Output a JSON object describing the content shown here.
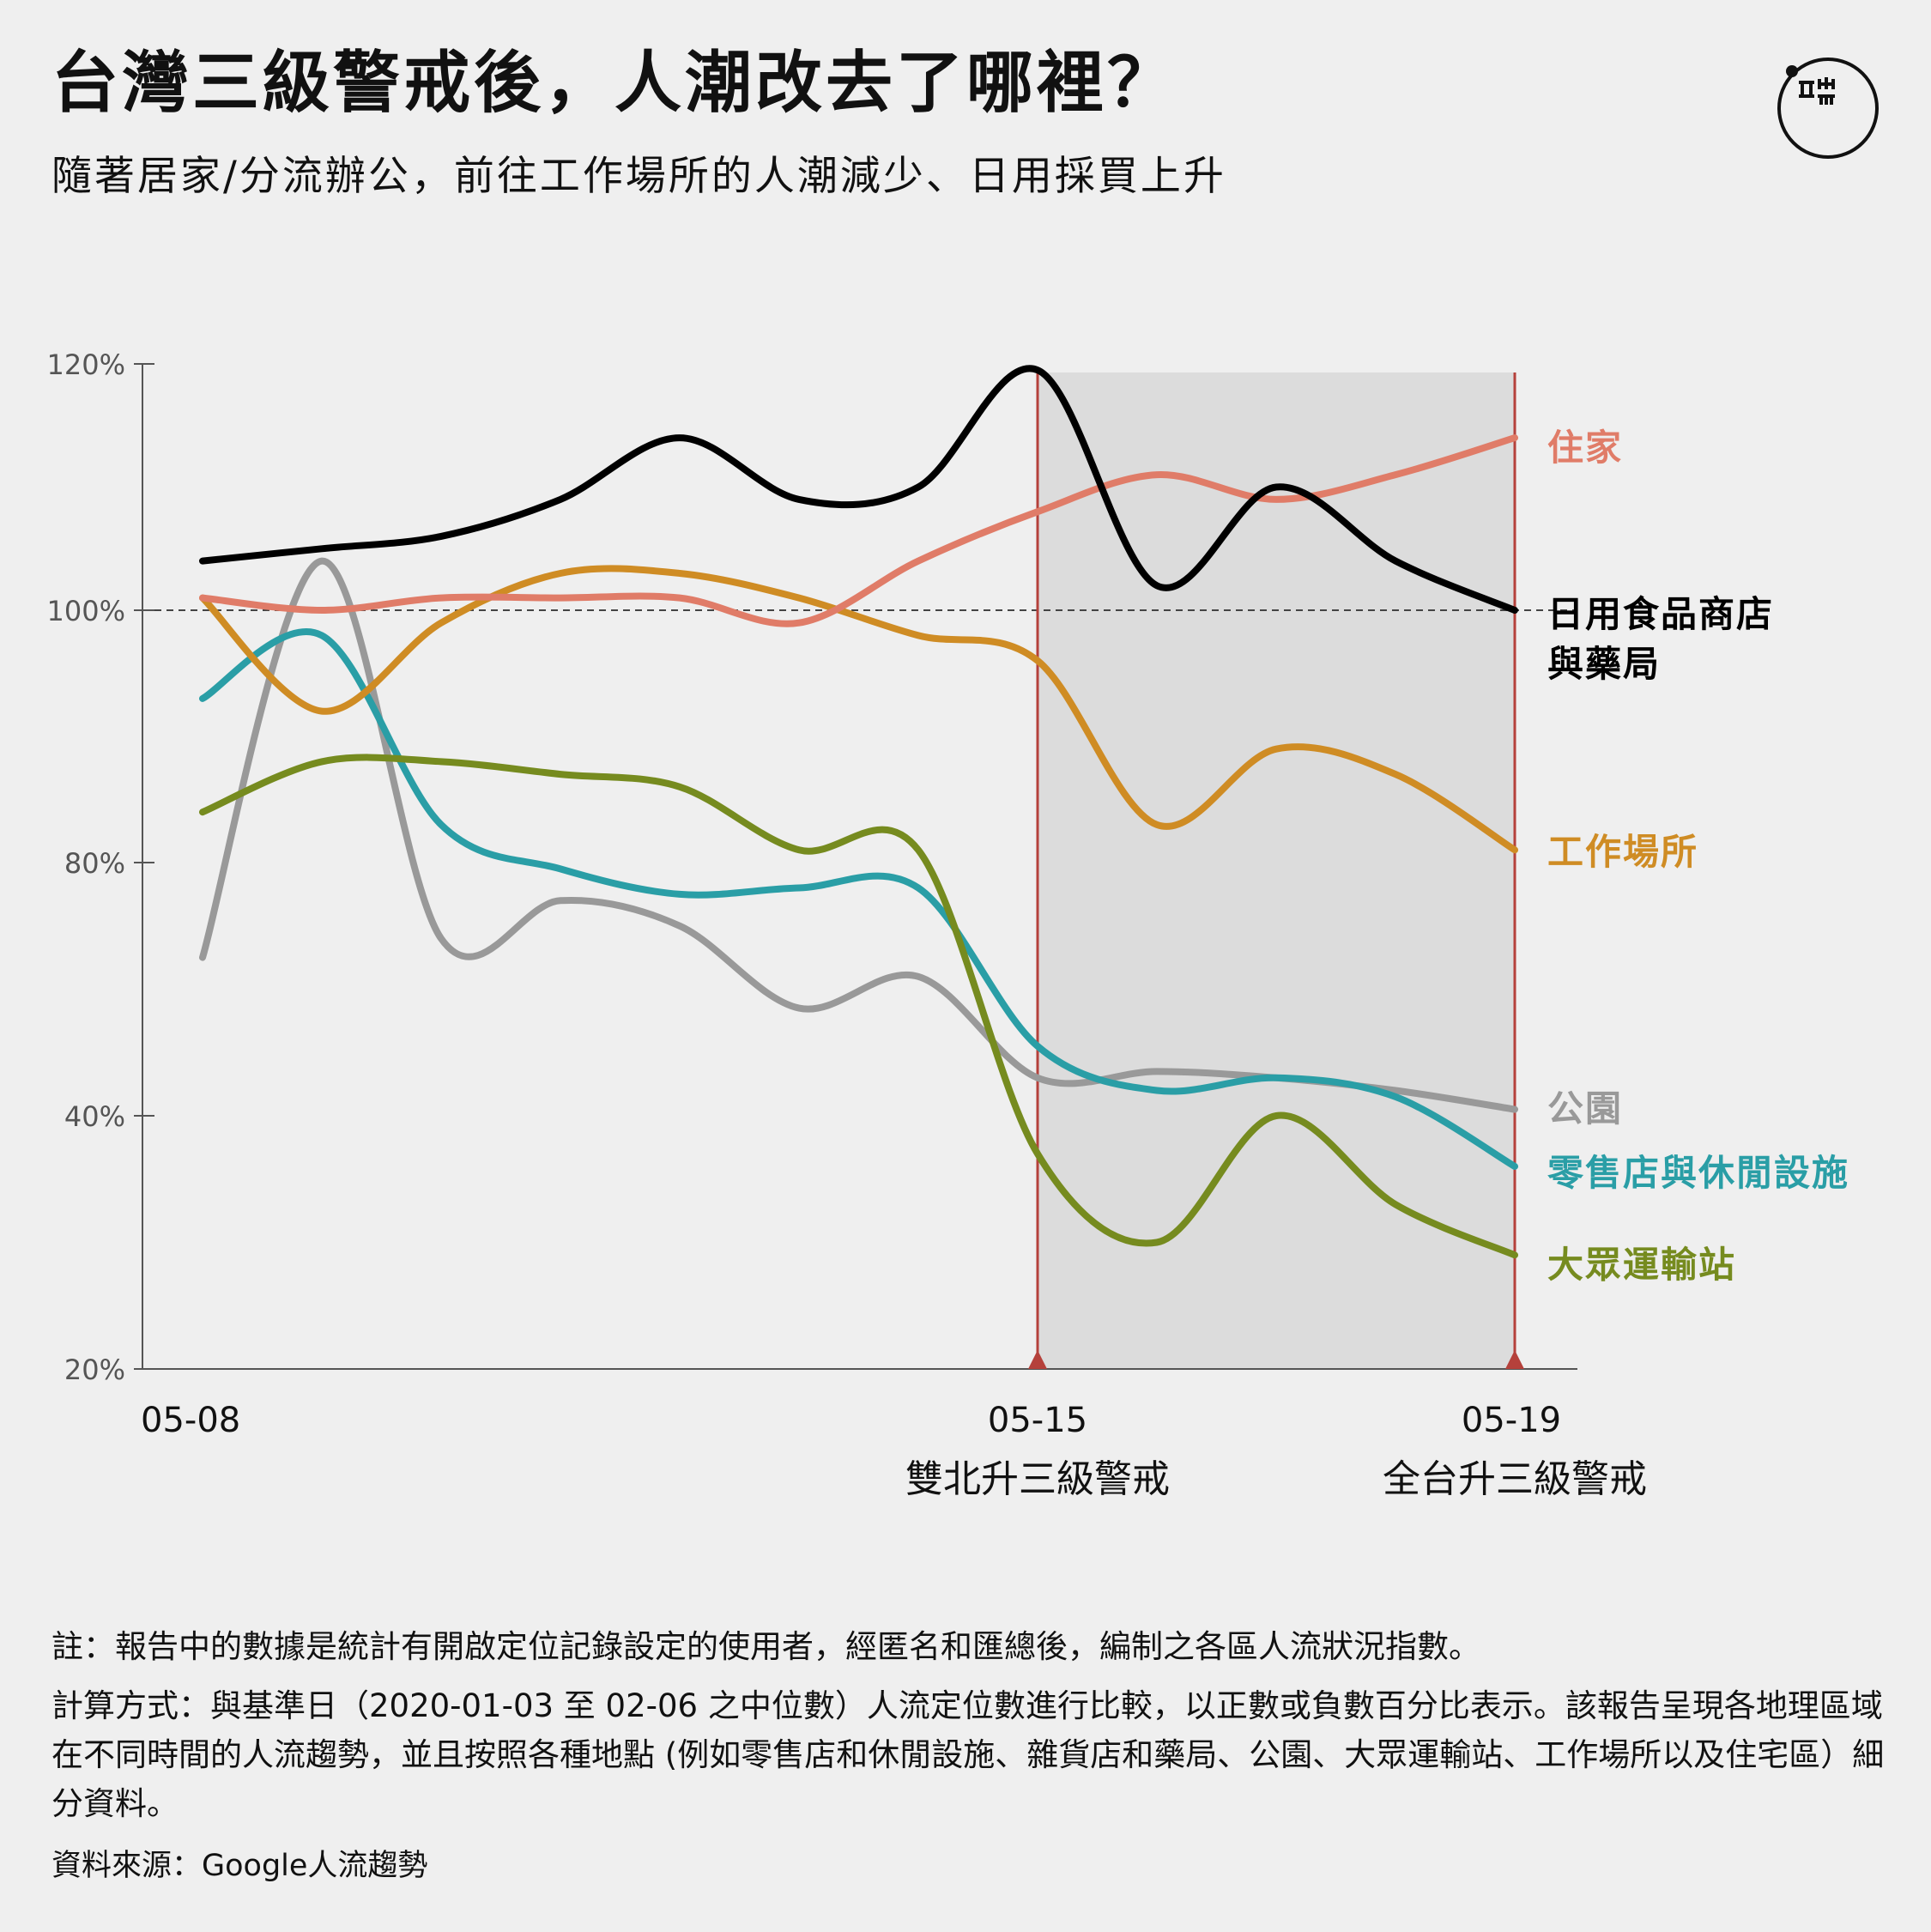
{
  "title": "台灣三級警戒後，人潮改去了哪裡？",
  "subtitle": "隨著居家/分流辦公，前往工作場所的人潮減少、日用採買上升",
  "logo": {
    "icon": "theinitium-logo-icon"
  },
  "colors": {
    "background": "#efefef",
    "shade": "#dcdcdc",
    "event_line": "#b5413b",
    "axis": "#555555"
  },
  "notes": {
    "note": "註：報告中的數據是統計有開啟定位記錄設定的使用者，經匿名和匯總後，編制之各區人流狀況指數。",
    "method": "計算方式：與基準日（2020-01-03 至 02-06 之中位數）人流定位數進行比較，以正數或負數百分比表示。該報告呈現各地理區域在不同時間的人流趨勢，並且按照各種地點 (例如零售店和休閒設施、雜貨店和藥局、公園、大眾運輸站、工作場所以及住宅區）細分資料。",
    "source": "資料來源：Google人流趨勢"
  },
  "chart_data": {
    "type": "line",
    "title": "台灣三級警戒後，人潮改去了哪裡？",
    "subtitle": "隨著居家/分流辦公，前往工作場所的人潮減少、日用採買上升",
    "x": [
      "05-08",
      "05-09",
      "05-10",
      "05-11",
      "05-12",
      "05-13",
      "05-14",
      "05-15",
      "05-16",
      "05-17",
      "05-18",
      "05-19"
    ],
    "x_tick_labels": [
      "05-08",
      "05-15",
      "05-19"
    ],
    "y_ticks": [
      20,
      40,
      80,
      100,
      120
    ],
    "y_tick_labels": [
      "20%",
      "40%",
      "80%",
      "100%",
      "120%"
    ],
    "y_scale": {
      "domain": [
        20,
        40,
        80,
        100,
        120
      ],
      "note": "non-uniform axis spacing"
    },
    "ylim": [
      20,
      120
    ],
    "reference_line": {
      "y": 100,
      "style": "dashed"
    },
    "shaded_range": [
      "05-15",
      "05-19"
    ],
    "events": [
      {
        "x": "05-15",
        "label": "雙北升三級警戒"
      },
      {
        "x": "05-19",
        "label": "全台升三級警戒"
      }
    ],
    "series": [
      {
        "name": "住家",
        "color": "#e07c68",
        "values": [
          101,
          100,
          101,
          101,
          101,
          99,
          104,
          108,
          111,
          109,
          111,
          114
        ]
      },
      {
        "name": "日用食品商店與藥局",
        "label_lines": [
          "日用食品商店",
          "與藥局"
        ],
        "color": "#000000",
        "values": [
          104,
          105,
          106,
          109,
          114,
          109,
          110,
          119.5,
          102,
          110,
          104,
          100
        ]
      },
      {
        "name": "工作場所",
        "color": "#cf8c24",
        "values": [
          101,
          92,
          99,
          103,
          103,
          101,
          98,
          96,
          83,
          89,
          87,
          81
        ]
      },
      {
        "name": "公園",
        "color": "#999999",
        "values": [
          65,
          104,
          68,
          74,
          70,
          57,
          62,
          46,
          47,
          46,
          44,
          41
        ]
      },
      {
        "name": "零售店與休閒設施",
        "color": "#2a9ea6",
        "values": [
          93,
          98,
          83,
          79,
          75,
          76,
          76,
          51,
          44,
          46,
          43,
          36
        ]
      },
      {
        "name": "大眾運輸站",
        "color": "#768b1f",
        "values": [
          84,
          88,
          88,
          87,
          86,
          81,
          81,
          37,
          30,
          40,
          33,
          29
        ]
      }
    ]
  }
}
